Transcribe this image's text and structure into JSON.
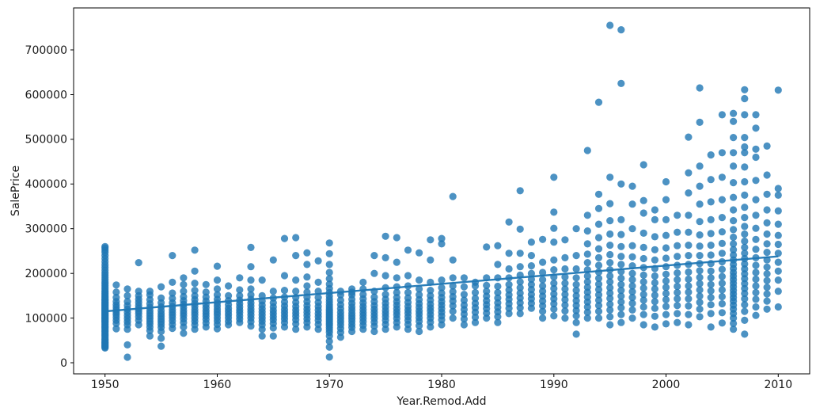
{
  "figure": {
    "background": "#ffffff",
    "spine_color": "#000000"
  },
  "chart_data": {
    "type": "scatter",
    "title": "",
    "xlabel": "Year.Remod.Add",
    "ylabel": "SalePrice",
    "xlim": [
      1947.2,
      2012.8
    ],
    "ylim": [
      -24800,
      794000
    ],
    "xticks": [
      1950,
      1960,
      1970,
      1980,
      1990,
      2000,
      2010
    ],
    "yticks": [
      0,
      100000,
      200000,
      300000,
      400000,
      500000,
      600000,
      700000
    ],
    "grid": false,
    "legend_position": "none",
    "marker": {
      "color": "#1f77b4",
      "opacity": 0.8,
      "radius": 4.6
    },
    "trend_line": {
      "color": "#1f77b4",
      "opacity": 0.95,
      "width": 2.4,
      "x": [
        1950,
        2010
      ],
      "y": [
        115000,
        238000
      ]
    },
    "points_by_year": {
      "1950": [
        33000,
        35000,
        37000,
        39000,
        41000,
        43000,
        45000,
        47000,
        50000,
        52000,
        55000,
        58000,
        61000,
        64000,
        67000,
        70000,
        72000,
        75000,
        78000,
        80000,
        82000,
        85000,
        87000,
        90000,
        92000,
        94000,
        96000,
        98000,
        100000,
        102000,
        104000,
        106000,
        108000,
        110000,
        112000,
        114000,
        116000,
        118000,
        120000,
        122000,
        124000,
        126000,
        128000,
        130000,
        132000,
        134000,
        136000,
        139000,
        141000,
        143000,
        146000,
        149000,
        152000,
        155000,
        158000,
        161000,
        165000,
        169000,
        173000,
        177000,
        181000,
        186000,
        191000,
        196000,
        201000,
        207000,
        213000,
        219000,
        226000,
        233000,
        240000,
        247000,
        252000,
        257000,
        260000
      ],
      "1951": [
        76000,
        88000,
        95000,
        102000,
        108000,
        113000,
        118000,
        124000,
        130000,
        137000,
        146000,
        158000,
        174000
      ],
      "1952": [
        12500,
        40000,
        75000,
        85000,
        92000,
        99000,
        106000,
        113000,
        120000,
        128000,
        137000,
        150000,
        165000
      ],
      "1953": [
        85000,
        95000,
        103000,
        110000,
        116000,
        122000,
        128000,
        135000,
        142000,
        150000,
        160000,
        224000
      ],
      "1954": [
        60000,
        72000,
        80000,
        87000,
        93000,
        99000,
        105000,
        111000,
        117000,
        124000,
        132000,
        141000,
        152000,
        160000
      ],
      "1955": [
        37000,
        55000,
        70000,
        79000,
        86000,
        92000,
        98000,
        104000,
        110000,
        117000,
        125000,
        134000,
        145000,
        170000
      ],
      "1956": [
        77000,
        86000,
        94000,
        101000,
        107000,
        113000,
        119000,
        126000,
        134000,
        144000,
        156000,
        180000,
        240000
      ],
      "1957": [
        66000,
        80000,
        90000,
        98000,
        105000,
        111000,
        117000,
        124000,
        131000,
        139000,
        148000,
        160000,
        175000,
        190000
      ],
      "1958": [
        75000,
        85000,
        93000,
        100000,
        107000,
        113000,
        119000,
        126000,
        133000,
        141000,
        150000,
        162000,
        178000,
        205000,
        252000
      ],
      "1959": [
        80000,
        89000,
        97000,
        104000,
        110000,
        116000,
        123000,
        130000,
        138000,
        147000,
        158000,
        175000
      ],
      "1960": [
        76000,
        86000,
        94000,
        101000,
        108000,
        114000,
        120000,
        127000,
        134000,
        142000,
        152000,
        165000,
        185000,
        216000
      ],
      "1961": [
        85000,
        93000,
        101000,
        108000,
        115000,
        122000,
        130000,
        139000,
        150000,
        172000
      ],
      "1962": [
        90000,
        98000,
        105000,
        112000,
        118000,
        125000,
        132000,
        140000,
        150000,
        163000,
        190000
      ],
      "1963": [
        82000,
        92000,
        100000,
        107000,
        114000,
        120000,
        127000,
        134000,
        142000,
        152000,
        165000,
        185000,
        215000,
        258000
      ],
      "1964": [
        60000,
        75000,
        85000,
        93000,
        100000,
        107000,
        114000,
        121000,
        129000,
        138000,
        150000,
        185000
      ],
      "1965": [
        60000,
        78000,
        88000,
        96000,
        103000,
        110000,
        117000,
        125000,
        134000,
        145000,
        160000,
        230000
      ],
      "1966": [
        80000,
        90000,
        98000,
        105000,
        112000,
        119000,
        127000,
        136000,
        147000,
        162000,
        195000,
        278000
      ],
      "1967": [
        75000,
        87000,
        96000,
        104000,
        111000,
        118000,
        126000,
        135000,
        146000,
        160000,
        185000,
        240000,
        280000
      ],
      "1968": [
        80000,
        90000,
        98000,
        106000,
        113000,
        120000,
        128000,
        137000,
        147000,
        158000,
        172000,
        192000,
        220000,
        246000
      ],
      "1969": [
        75000,
        86000,
        95000,
        103000,
        110000,
        118000,
        126000,
        135000,
        146000,
        160000,
        180000,
        228000
      ],
      "1970": [
        12800,
        35000,
        48000,
        60000,
        68000,
        74000,
        79000,
        84000,
        88000,
        92000,
        96000,
        100000,
        104000,
        108000,
        112000,
        116000,
        120000,
        125000,
        130000,
        136000,
        142000,
        149000,
        157000,
        166000,
        176000,
        188000,
        202000,
        220000,
        244000,
        268000
      ],
      "1971": [
        57000,
        68000,
        77000,
        85000,
        92000,
        99000,
        106000,
        113000,
        121000,
        130000,
        140000,
        152000,
        160000
      ],
      "1972": [
        70000,
        79000,
        86000,
        93000,
        99000,
        105000,
        111000,
        118000,
        125000,
        133000,
        142000,
        152000,
        158000,
        165000
      ],
      "1973": [
        75000,
        84000,
        92000,
        99000,
        106000,
        112000,
        119000,
        126000,
        134000,
        143000,
        153000,
        165000,
        180000
      ],
      "1974": [
        70000,
        82000,
        91000,
        99000,
        106000,
        113000,
        120000,
        128000,
        137000,
        147000,
        160000,
        200000,
        240000
      ],
      "1975": [
        75000,
        86000,
        95000,
        103000,
        110000,
        117000,
        125000,
        133000,
        142000,
        153000,
        168000,
        195000,
        235000,
        283000
      ],
      "1976": [
        80000,
        90000,
        99000,
        107000,
        114000,
        121000,
        129000,
        137000,
        146000,
        157000,
        170000,
        190000,
        225000,
        280000
      ],
      "1977": [
        75000,
        86000,
        95000,
        103000,
        111000,
        118000,
        126000,
        135000,
        145000,
        157000,
        172000,
        195000,
        252000
      ],
      "1978": [
        70000,
        83000,
        93000,
        101000,
        109000,
        116000,
        124000,
        132000,
        141000,
        152000,
        165000,
        185000,
        246000
      ],
      "1979": [
        80000,
        91000,
        100000,
        108000,
        116000,
        123000,
        131000,
        140000,
        150000,
        162000,
        180000,
        230000,
        275000
      ],
      "1980": [
        85000,
        96000,
        105000,
        113000,
        121000,
        129000,
        137000,
        146000,
        156000,
        168000,
        185000,
        266000,
        278000
      ],
      "1981": [
        100000,
        115000,
        127000,
        138000,
        148000,
        159000,
        172000,
        190000,
        230000,
        372000
      ],
      "1982": [
        85000,
        98000,
        109000,
        119000,
        129000,
        140000,
        153000,
        170000,
        190000
      ],
      "1983": [
        90000,
        102000,
        113000,
        123000,
        133000,
        144000,
        157000,
        172000,
        180000
      ],
      "1984": [
        100000,
        111000,
        121000,
        130000,
        139000,
        149000,
        160000,
        173000,
        190000,
        259000
      ],
      "1985": [
        90000,
        103000,
        114000,
        124000,
        134000,
        145000,
        157000,
        171000,
        190000,
        220000,
        262000
      ],
      "1986": [
        110000,
        122000,
        132000,
        142000,
        152000,
        163000,
        175000,
        190000,
        210000,
        245000,
        315000
      ],
      "1987": [
        110000,
        123000,
        134000,
        145000,
        156000,
        168000,
        181000,
        196000,
        215000,
        245000,
        299000,
        385000
      ],
      "1988": [
        122000,
        133000,
        143000,
        153000,
        164000,
        175000,
        187000,
        200000,
        217000,
        240000,
        270000
      ],
      "1989": [
        100000,
        115000,
        127000,
        138000,
        149000,
        160000,
        172000,
        186000,
        202000,
        225000,
        276000
      ],
      "1990": [
        105000,
        120000,
        132000,
        143000,
        154000,
        166000,
        178000,
        192000,
        208000,
        230000,
        270000,
        301000,
        337000,
        415000
      ],
      "1991": [
        100000,
        116000,
        129000,
        141000,
        153000,
        165000,
        178000,
        192000,
        210000,
        235000,
        275000
      ],
      "1992": [
        64000,
        90000,
        105000,
        117000,
        128000,
        139000,
        150000,
        162000,
        175000,
        190000,
        210000,
        240000,
        300000
      ],
      "1993": [
        100000,
        113000,
        125000,
        136000,
        147000,
        158000,
        169000,
        181000,
        194000,
        208000,
        224000,
        243000,
        266000,
        295000,
        330000,
        475000
      ],
      "1994": [
        100000,
        115000,
        128000,
        140000,
        152000,
        164000,
        176000,
        189000,
        203000,
        218000,
        235000,
        255000,
        280000,
        310000,
        345000,
        377000,
        583000
      ],
      "1995": [
        85000,
        103000,
        118000,
        131000,
        144000,
        156000,
        168000,
        181000,
        194000,
        208000,
        224000,
        242000,
        263000,
        288000,
        318000,
        356000,
        415000,
        755000
      ],
      "1996": [
        90000,
        108000,
        123000,
        136000,
        149000,
        162000,
        175000,
        189000,
        204000,
        220000,
        238000,
        260000,
        287000,
        320000,
        400000,
        625000,
        745000
      ],
      "1997": [
        100000,
        118000,
        133000,
        146000,
        159000,
        172000,
        186000,
        200000,
        217000,
        237000,
        262000,
        300000,
        355000,
        395000
      ],
      "1998": [
        85000,
        108000,
        125000,
        140000,
        153000,
        167000,
        181000,
        196000,
        213000,
        233000,
        258000,
        290000,
        335000,
        363000,
        443000
      ],
      "1999": [
        80000,
        104000,
        122000,
        137000,
        151000,
        165000,
        179000,
        194000,
        211000,
        230000,
        253000,
        282000,
        320000,
        342000
      ],
      "2000": [
        87000,
        108000,
        126000,
        141000,
        155000,
        169000,
        183000,
        198000,
        215000,
        234000,
        257000,
        285000,
        320000,
        365000,
        405000
      ],
      "2001": [
        90000,
        110000,
        128000,
        143000,
        157000,
        171000,
        186000,
        201000,
        218000,
        238000,
        262000,
        292000,
        330000
      ],
      "2002": [
        85000,
        108000,
        127000,
        143000,
        158000,
        172000,
        187000,
        203000,
        220000,
        240000,
        263000,
        292000,
        330000,
        380000,
        425000,
        505000
      ],
      "2003": [
        103000,
        120000,
        135000,
        149000,
        163000,
        177000,
        191000,
        206000,
        222000,
        240000,
        261000,
        286000,
        316000,
        355000,
        395000,
        440000,
        538000,
        615000
      ],
      "2004": [
        80000,
        110000,
        130000,
        146000,
        161000,
        175000,
        190000,
        205000,
        222000,
        241000,
        263000,
        289000,
        320000,
        360000,
        410000,
        465000
      ],
      "2005": [
        89000,
        112000,
        132000,
        148000,
        163000,
        178000,
        193000,
        209000,
        226000,
        245000,
        267000,
        293000,
        325000,
        365000,
        415000,
        470000,
        555000
      ],
      "2006": [
        75000,
        88000,
        100000,
        110000,
        120000,
        129000,
        138000,
        146000,
        154000,
        162000,
        170000,
        178000,
        186000,
        194000,
        202000,
        211000,
        220000,
        230000,
        241000,
        253000,
        266000,
        281000,
        298000,
        318000,
        342000,
        370000,
        403000,
        440000,
        470000,
        504000,
        540000,
        558000
      ],
      "2007": [
        64000,
        95000,
        115000,
        130000,
        143000,
        155000,
        166000,
        177000,
        188000,
        199000,
        210000,
        221000,
        233000,
        245000,
        258000,
        272000,
        288000,
        305000,
        325000,
        348000,
        375000,
        405000,
        438000,
        470000,
        483000,
        504000,
        555000,
        591000,
        611000
      ],
      "2008": [
        106000,
        125000,
        142000,
        157000,
        172000,
        187000,
        202000,
        218000,
        235000,
        254000,
        276000,
        301000,
        330000,
        365000,
        408000,
        460000,
        478000,
        525000,
        555000
      ],
      "2009": [
        120000,
        138000,
        154000,
        169000,
        184000,
        199000,
        214000,
        230000,
        247000,
        266000,
        288000,
        313000,
        342000,
        377000,
        420000,
        485000
      ],
      "2010": [
        125000,
        160000,
        185000,
        205000,
        225000,
        245000,
        265000,
        285000,
        310000,
        340000,
        375000,
        390000,
        610000
      ]
    }
  }
}
